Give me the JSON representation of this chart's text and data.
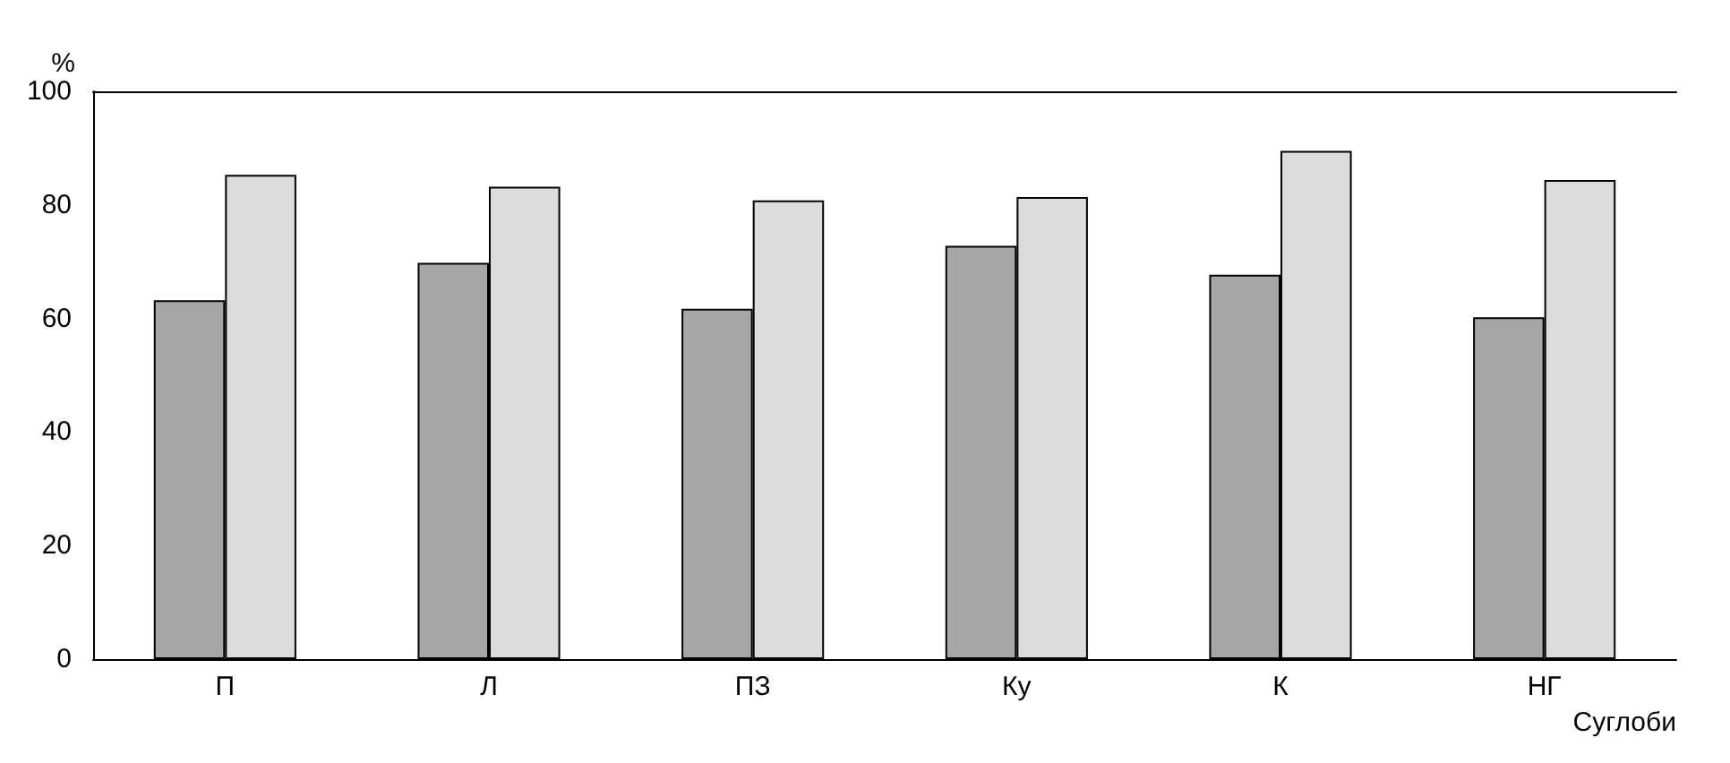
{
  "chart_data": {
    "type": "bar",
    "ylabel": "%",
    "xlabel": "Суглоби",
    "categories": [
      "П",
      "Л",
      "ПЗ",
      "Ку",
      "К",
      "НГ"
    ],
    "series": [
      {
        "color": "#a6a6a6",
        "values": [
          63.2,
          69.8,
          61.7,
          72.8,
          67.7,
          60.2
        ]
      },
      {
        "color": "#dcdcdc",
        "values": [
          85.3,
          83.2,
          80.8,
          81.4,
          89.5,
          84.4
        ]
      }
    ],
    "ylim": [
      0,
      100
    ],
    "yticks": [
      0,
      20,
      40,
      60,
      80,
      100
    ],
    "grid": false
  }
}
